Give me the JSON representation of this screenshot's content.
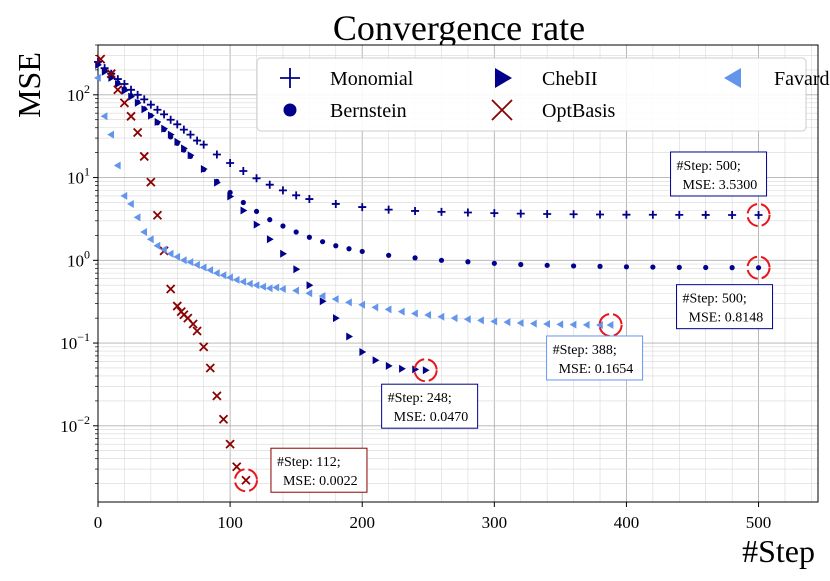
{
  "chart_data": {
    "type": "scatter",
    "title": "Convergence rate",
    "xlabel": "#Step",
    "ylabel": "MSE",
    "xlim": [
      0,
      545
    ],
    "ylim": [
      0.0012,
      400
    ],
    "yscale": "log",
    "grid": true,
    "legend_position": "top-right",
    "xticks": [
      "0",
      "100",
      "200",
      "300",
      "400",
      "500"
    ],
    "xtick_values": [
      0,
      100,
      200,
      300,
      400,
      500
    ],
    "ytick_values": [
      0.01,
      0.1,
      1,
      10,
      100
    ],
    "ytick_labels": [
      {
        "base": "10",
        "exp": "−2"
      },
      {
        "base": "10",
        "exp": "−1"
      },
      {
        "base": "10",
        "exp": "0"
      },
      {
        "base": "10",
        "exp": "1"
      },
      {
        "base": "10",
        "exp": "2"
      }
    ],
    "series": [
      {
        "name": "Monomial",
        "marker": "plus",
        "color": "#00008B",
        "x": [
          0,
          5,
          10,
          15,
          20,
          25,
          30,
          35,
          40,
          45,
          50,
          55,
          60,
          65,
          70,
          75,
          80,
          90,
          100,
          110,
          120,
          130,
          140,
          150,
          160,
          180,
          200,
          220,
          240,
          260,
          280,
          300,
          320,
          340,
          360,
          380,
          400,
          420,
          440,
          460,
          480,
          500
        ],
        "y": [
          250,
          210,
          180,
          155,
          135,
          115,
          100,
          88,
          76,
          66,
          58,
          50,
          44,
          38,
          33,
          28,
          25,
          19,
          15,
          12,
          9.8,
          8.2,
          7.0,
          6.1,
          5.5,
          4.8,
          4.4,
          4.1,
          3.95,
          3.85,
          3.78,
          3.72,
          3.67,
          3.63,
          3.6,
          3.58,
          3.56,
          3.55,
          3.54,
          3.535,
          3.532,
          3.53
        ]
      },
      {
        "name": "Bernstein",
        "marker": "circle",
        "color": "#00008B",
        "x": [
          0,
          5,
          10,
          15,
          20,
          25,
          30,
          35,
          40,
          45,
          50,
          55,
          60,
          65,
          70,
          80,
          90,
          100,
          110,
          120,
          130,
          140,
          150,
          160,
          170,
          180,
          190,
          200,
          220,
          240,
          260,
          280,
          300,
          320,
          340,
          360,
          380,
          400,
          420,
          440,
          460,
          480,
          500
        ],
        "y": [
          240,
          200,
          165,
          140,
          118,
          98,
          82,
          68,
          56,
          46,
          38,
          31,
          26,
          21.5,
          18,
          12.5,
          9,
          6.6,
          5.0,
          3.9,
          3.1,
          2.6,
          2.2,
          1.9,
          1.68,
          1.5,
          1.38,
          1.28,
          1.15,
          1.07,
          1.0,
          0.96,
          0.92,
          0.89,
          0.87,
          0.855,
          0.845,
          0.835,
          0.828,
          0.822,
          0.818,
          0.816,
          0.8148
        ]
      },
      {
        "name": "ChebII",
        "marker": "triangle-right",
        "color": "#00008B",
        "x": [
          0,
          5,
          10,
          15,
          20,
          25,
          30,
          35,
          40,
          45,
          50,
          55,
          60,
          65,
          70,
          80,
          90,
          100,
          110,
          120,
          130,
          140,
          150,
          160,
          170,
          180,
          190,
          200,
          210,
          220,
          230,
          240,
          248
        ],
        "y": [
          230,
          190,
          160,
          135,
          112,
          95,
          80,
          67,
          56,
          47,
          39,
          33,
          27,
          22.5,
          18.6,
          12.7,
          8.7,
          5.9,
          4.0,
          2.7,
          1.8,
          1.2,
          0.78,
          0.5,
          0.32,
          0.2,
          0.12,
          0.078,
          0.062,
          0.053,
          0.049,
          0.048,
          0.047
        ]
      },
      {
        "name": "OptBasis",
        "marker": "x",
        "color": "#8B0000",
        "x": [
          2,
          10,
          15,
          20,
          25,
          30,
          35,
          40,
          45,
          50,
          55,
          60,
          63,
          65,
          68,
          72,
          75,
          80,
          85,
          90,
          95,
          100,
          105,
          112
        ],
        "y": [
          270,
          180,
          115,
          80,
          55,
          35,
          18,
          8.8,
          3.5,
          1.3,
          0.45,
          0.28,
          0.24,
          0.22,
          0.2,
          0.17,
          0.14,
          0.09,
          0.05,
          0.023,
          0.012,
          0.006,
          0.0032,
          0.0022
        ]
      },
      {
        "name": "Favard",
        "marker": "triangle-left",
        "color": "#6495ED",
        "x": [
          0,
          5,
          10,
          15,
          20,
          25,
          30,
          35,
          40,
          45,
          50,
          55,
          60,
          65,
          70,
          75,
          80,
          85,
          90,
          95,
          100,
          105,
          110,
          115,
          120,
          125,
          130,
          135,
          140,
          150,
          160,
          170,
          180,
          190,
          200,
          210,
          220,
          230,
          240,
          250,
          260,
          270,
          280,
          290,
          300,
          310,
          320,
          330,
          340,
          350,
          360,
          370,
          380,
          388
        ],
        "y": [
          160,
          55,
          33,
          14,
          6,
          4.8,
          3.3,
          2.2,
          1.8,
          1.5,
          1.35,
          1.2,
          1.1,
          1.0,
          0.95,
          0.88,
          0.82,
          0.76,
          0.7,
          0.66,
          0.62,
          0.58,
          0.55,
          0.52,
          0.5,
          0.48,
          0.46,
          0.47,
          0.45,
          0.43,
          0.4,
          0.37,
          0.34,
          0.31,
          0.29,
          0.27,
          0.255,
          0.24,
          0.228,
          0.218,
          0.208,
          0.2,
          0.194,
          0.188,
          0.183,
          0.179,
          0.175,
          0.172,
          0.17,
          0.168,
          0.167,
          0.166,
          0.1655,
          0.1654
        ]
      }
    ],
    "annotations": [
      {
        "step_text": "#Step: 500;",
        "mse_text": "MSE: 3.5300",
        "x": 500,
        "y": 3.53,
        "color": "#00008B"
      },
      {
        "step_text": "#Step: 500;",
        "mse_text": "MSE: 0.8148",
        "x": 500,
        "y": 0.8148,
        "color": "#00008B"
      },
      {
        "step_text": "#Step: 388;",
        "mse_text": "MSE: 0.1654",
        "x": 388,
        "y": 0.1654,
        "color": "#6495ED"
      },
      {
        "step_text": "#Step: 248;",
        "mse_text": "MSE: 0.0470",
        "x": 248,
        "y": 0.047,
        "color": "#00008B"
      },
      {
        "step_text": "#Step: 112;",
        "mse_text": "MSE: 0.0022",
        "x": 112,
        "y": 0.0022,
        "color": "#8B0000"
      }
    ]
  }
}
